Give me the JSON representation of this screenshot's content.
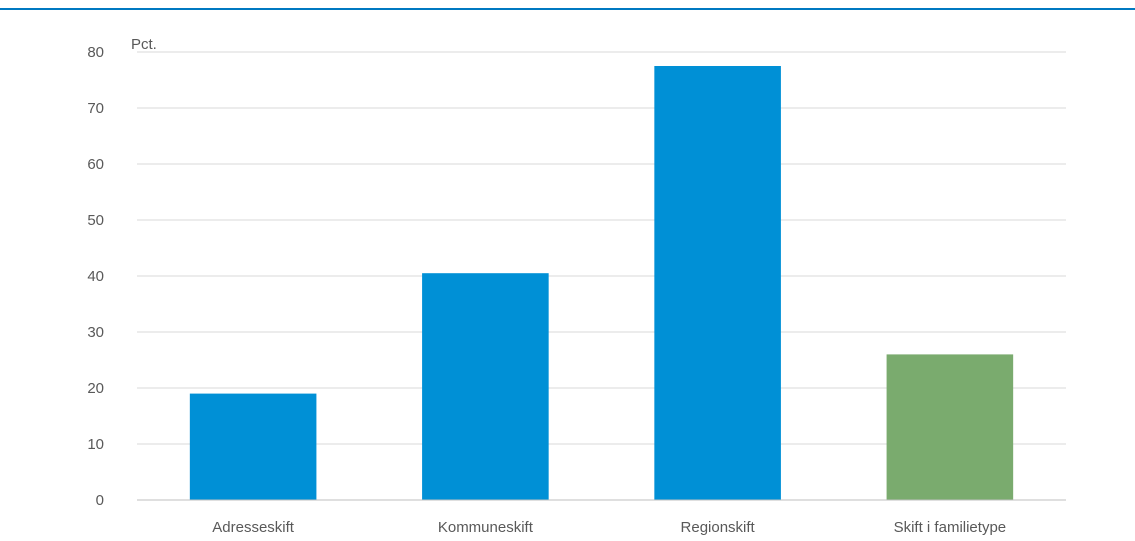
{
  "chart_data": {
    "type": "bar",
    "ylabel": "Pct.",
    "ylim": [
      0,
      80
    ],
    "yticks": [
      0,
      10,
      20,
      30,
      40,
      50,
      60,
      70,
      80
    ],
    "grid": true,
    "categories": [
      "Adresseskift",
      "Kommuneskift",
      "Regionskift",
      "Skift i familietype"
    ],
    "values": [
      19,
      40.5,
      77.5,
      26
    ],
    "bar_colors": [
      "#0090d6",
      "#0090d6",
      "#0090d6",
      "#7aab6e"
    ],
    "gridline_color": "#d9d9d9"
  }
}
